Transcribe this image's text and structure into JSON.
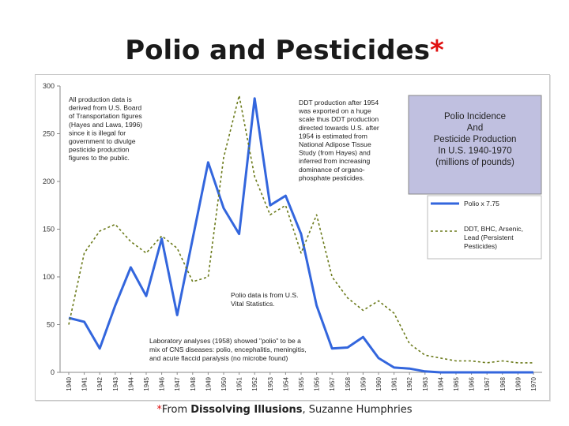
{
  "title": {
    "main": "Polio and Pesticides",
    "star": "*"
  },
  "footer": {
    "star": "*",
    "prefix": "From ",
    "book": "Dissolving Illusions",
    "suffix": ", Suzanne Humphries"
  },
  "colors": {
    "polio": "#3366dd",
    "pesticide": "#6b7a1a",
    "inset_bg": "#c0c0e0",
    "inset_border": "#888"
  },
  "chart_data": {
    "type": "line",
    "x": [
      "1940",
      "1941",
      "1942",
      "1943",
      "1944",
      "1945",
      "1946",
      "1947",
      "1948",
      "1949",
      "1950",
      "1951",
      "1952",
      "1953",
      "1954",
      "1955",
      "1956",
      "1957",
      "1958",
      "1959",
      "1960",
      "1961",
      "1962",
      "1963",
      "1964",
      "1965",
      "1966",
      "1967",
      "1968",
      "1969",
      "1970"
    ],
    "ylim": [
      0,
      300
    ],
    "yticks": [
      0,
      50,
      100,
      150,
      200,
      250,
      300
    ],
    "series": [
      {
        "name": "Polio x 7.75",
        "style": "solid",
        "color": "#3366dd",
        "values": [
          57,
          53,
          25,
          70,
          110,
          80,
          140,
          60,
          140,
          220,
          172,
          145,
          287,
          175,
          185,
          145,
          70,
          25,
          26,
          37,
          15,
          5,
          4,
          1,
          0,
          0,
          0,
          0,
          0,
          0,
          0
        ]
      },
      {
        "name": "DDT, BHC, Arsenic, Lead (Persistent Pesticides)",
        "style": "dashed",
        "color": "#6b7a1a",
        "values": [
          50,
          125,
          148,
          155,
          137,
          125,
          143,
          130,
          95,
          100,
          225,
          290,
          205,
          165,
          175,
          125,
          165,
          100,
          78,
          65,
          75,
          62,
          30,
          18,
          15,
          12,
          12,
          10,
          12,
          10,
          10
        ]
      }
    ],
    "inset_title": [
      "Polio Incidence",
      "And",
      "Pesticide Production",
      "In U.S. 1940-1970",
      "(millions of pounds)"
    ],
    "legend_polio": "Polio x 7.75",
    "legend_pest": [
      "DDT, BHC, Arsenic,",
      "Lead (Persistent",
      "Pesticides)"
    ],
    "annotations": {
      "production": [
        "All production data is",
        "derived from U.S. Board",
        "of Transportation figures",
        "(Hayes and Laws, 1996)",
        "since it is illegal for",
        "government to divulge",
        "pesticide production",
        "figures to the public."
      ],
      "ddt": [
        "DDT production after 1954",
        "was exported on a huge",
        "scale thus DDT production",
        "directed towards U.S. after",
        "1954 is estimated from",
        "National Adipose Tissue",
        "Study (from Hayes) and",
        "inferred from increasing",
        "dominance of organo-",
        "phosphate pesticides."
      ],
      "polio_data": [
        "Polio data is from U.S.",
        "Vital Statistics."
      ],
      "lab": [
        "Laboratory analyses (1958) showed \"polio\" to be a",
        "mix of CNS diseases: polio, encephalitis, meningitis,",
        "and acute flaccid paralysis (no microbe found)"
      ]
    }
  }
}
